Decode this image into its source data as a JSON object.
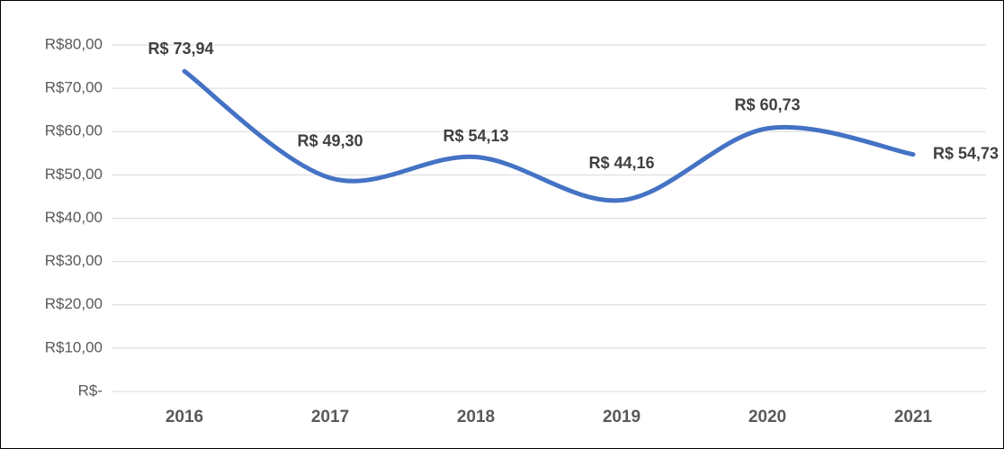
{
  "chart_data": {
    "type": "line",
    "categories": [
      "2016",
      "2017",
      "2018",
      "2019",
      "2020",
      "2021"
    ],
    "series": [
      {
        "color": "#4472c4",
        "values": [
          73.94,
          49.3,
          54.13,
          44.16,
          60.73,
          54.73
        ],
        "value_labels": [
          "R$ 73,94",
          "R$ 49,30",
          "R$ 54,13",
          "R$ 44,16",
          "R$ 60,73",
          "R$ 54,73"
        ]
      }
    ],
    "ylim": [
      0,
      80
    ],
    "yticks": [
      {
        "value": 0,
        "label": "R$-"
      },
      {
        "value": 10,
        "label": "R$10,00"
      },
      {
        "value": 20,
        "label": "R$20,00"
      },
      {
        "value": 30,
        "label": "R$30,00"
      },
      {
        "value": 40,
        "label": "R$40,00"
      },
      {
        "value": 50,
        "label": "R$50,00"
      },
      {
        "value": 60,
        "label": "R$60,00"
      },
      {
        "value": 70,
        "label": "R$70,00"
      },
      {
        "value": 80,
        "label": "R$80,00"
      }
    ],
    "grid": true,
    "smooth": true
  }
}
